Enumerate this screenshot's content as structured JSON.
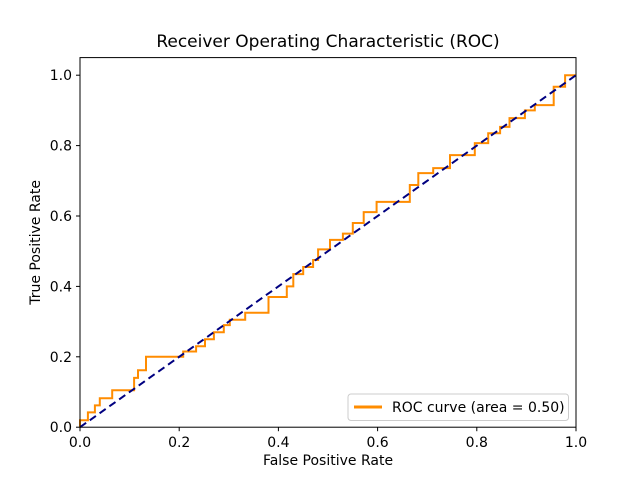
{
  "figure": {
    "background": "#ffffff"
  },
  "chart_data": {
    "type": "line",
    "title": "Receiver Operating Characteristic (ROC)",
    "xlabel": "False Positive Rate",
    "ylabel": "True Positive Rate",
    "xlim": [
      0.0,
      1.0
    ],
    "ylim": [
      0.0,
      1.05
    ],
    "grid": false,
    "x_ticks": [
      0.0,
      0.2,
      0.4,
      0.6,
      0.8,
      1.0
    ],
    "x_tick_labels": [
      "0.0",
      "0.2",
      "0.4",
      "0.6",
      "0.8",
      "1.0"
    ],
    "y_ticks": [
      0.0,
      0.2,
      0.4,
      0.6,
      0.8,
      1.0
    ],
    "y_tick_labels": [
      "0.0",
      "0.2",
      "0.4",
      "0.6",
      "0.8",
      "1.0"
    ],
    "legend": {
      "position": "lower right",
      "entries": [
        {
          "label": "ROC curve (area = 0.50)",
          "color": "#ff8c00",
          "line_style": "solid"
        }
      ]
    },
    "auc": 0.5,
    "series": [
      {
        "name": "ROC curve (area = 0.50)",
        "kind": "step",
        "color": "#ff8c00",
        "line_style": "solid",
        "line_width": 2,
        "points": [
          [
            0.0,
            0.0
          ],
          [
            0.0,
            0.02
          ],
          [
            0.016,
            0.02
          ],
          [
            0.016,
            0.042
          ],
          [
            0.03,
            0.042
          ],
          [
            0.03,
            0.062
          ],
          [
            0.04,
            0.062
          ],
          [
            0.04,
            0.082
          ],
          [
            0.065,
            0.082
          ],
          [
            0.065,
            0.105
          ],
          [
            0.109,
            0.105
          ],
          [
            0.109,
            0.14
          ],
          [
            0.117,
            0.14
          ],
          [
            0.117,
            0.162
          ],
          [
            0.133,
            0.162
          ],
          [
            0.133,
            0.2
          ],
          [
            0.208,
            0.2
          ],
          [
            0.208,
            0.215
          ],
          [
            0.234,
            0.215
          ],
          [
            0.234,
            0.23
          ],
          [
            0.252,
            0.23
          ],
          [
            0.252,
            0.25
          ],
          [
            0.27,
            0.25
          ],
          [
            0.27,
            0.27
          ],
          [
            0.29,
            0.27
          ],
          [
            0.29,
            0.29
          ],
          [
            0.302,
            0.29
          ],
          [
            0.302,
            0.305
          ],
          [
            0.333,
            0.305
          ],
          [
            0.333,
            0.325
          ],
          [
            0.38,
            0.325
          ],
          [
            0.38,
            0.37
          ],
          [
            0.417,
            0.37
          ],
          [
            0.417,
            0.4
          ],
          [
            0.43,
            0.4
          ],
          [
            0.43,
            0.435
          ],
          [
            0.45,
            0.435
          ],
          [
            0.45,
            0.455
          ],
          [
            0.47,
            0.455
          ],
          [
            0.47,
            0.475
          ],
          [
            0.48,
            0.475
          ],
          [
            0.48,
            0.505
          ],
          [
            0.504,
            0.505
          ],
          [
            0.504,
            0.532
          ],
          [
            0.53,
            0.532
          ],
          [
            0.53,
            0.55
          ],
          [
            0.55,
            0.55
          ],
          [
            0.55,
            0.58
          ],
          [
            0.572,
            0.58
          ],
          [
            0.572,
            0.611
          ],
          [
            0.598,
            0.611
          ],
          [
            0.598,
            0.64
          ],
          [
            0.665,
            0.64
          ],
          [
            0.665,
            0.688
          ],
          [
            0.682,
            0.688
          ],
          [
            0.682,
            0.722
          ],
          [
            0.712,
            0.722
          ],
          [
            0.712,
            0.736
          ],
          [
            0.746,
            0.736
          ],
          [
            0.746,
            0.773
          ],
          [
            0.796,
            0.773
          ],
          [
            0.796,
            0.807
          ],
          [
            0.823,
            0.807
          ],
          [
            0.823,
            0.835
          ],
          [
            0.847,
            0.835
          ],
          [
            0.847,
            0.853
          ],
          [
            0.866,
            0.853
          ],
          [
            0.866,
            0.878
          ],
          [
            0.897,
            0.878
          ],
          [
            0.897,
            0.9
          ],
          [
            0.917,
            0.9
          ],
          [
            0.917,
            0.915
          ],
          [
            0.955,
            0.915
          ],
          [
            0.955,
            0.967
          ],
          [
            0.978,
            0.967
          ],
          [
            0.978,
            1.0
          ],
          [
            1.0,
            1.0
          ]
        ]
      },
      {
        "name": "chance-diagonal",
        "kind": "line",
        "color": "#000080",
        "line_style": "dashed",
        "line_width": 2,
        "points": [
          [
            0.0,
            0.0
          ],
          [
            1.0,
            1.0
          ]
        ]
      }
    ]
  }
}
